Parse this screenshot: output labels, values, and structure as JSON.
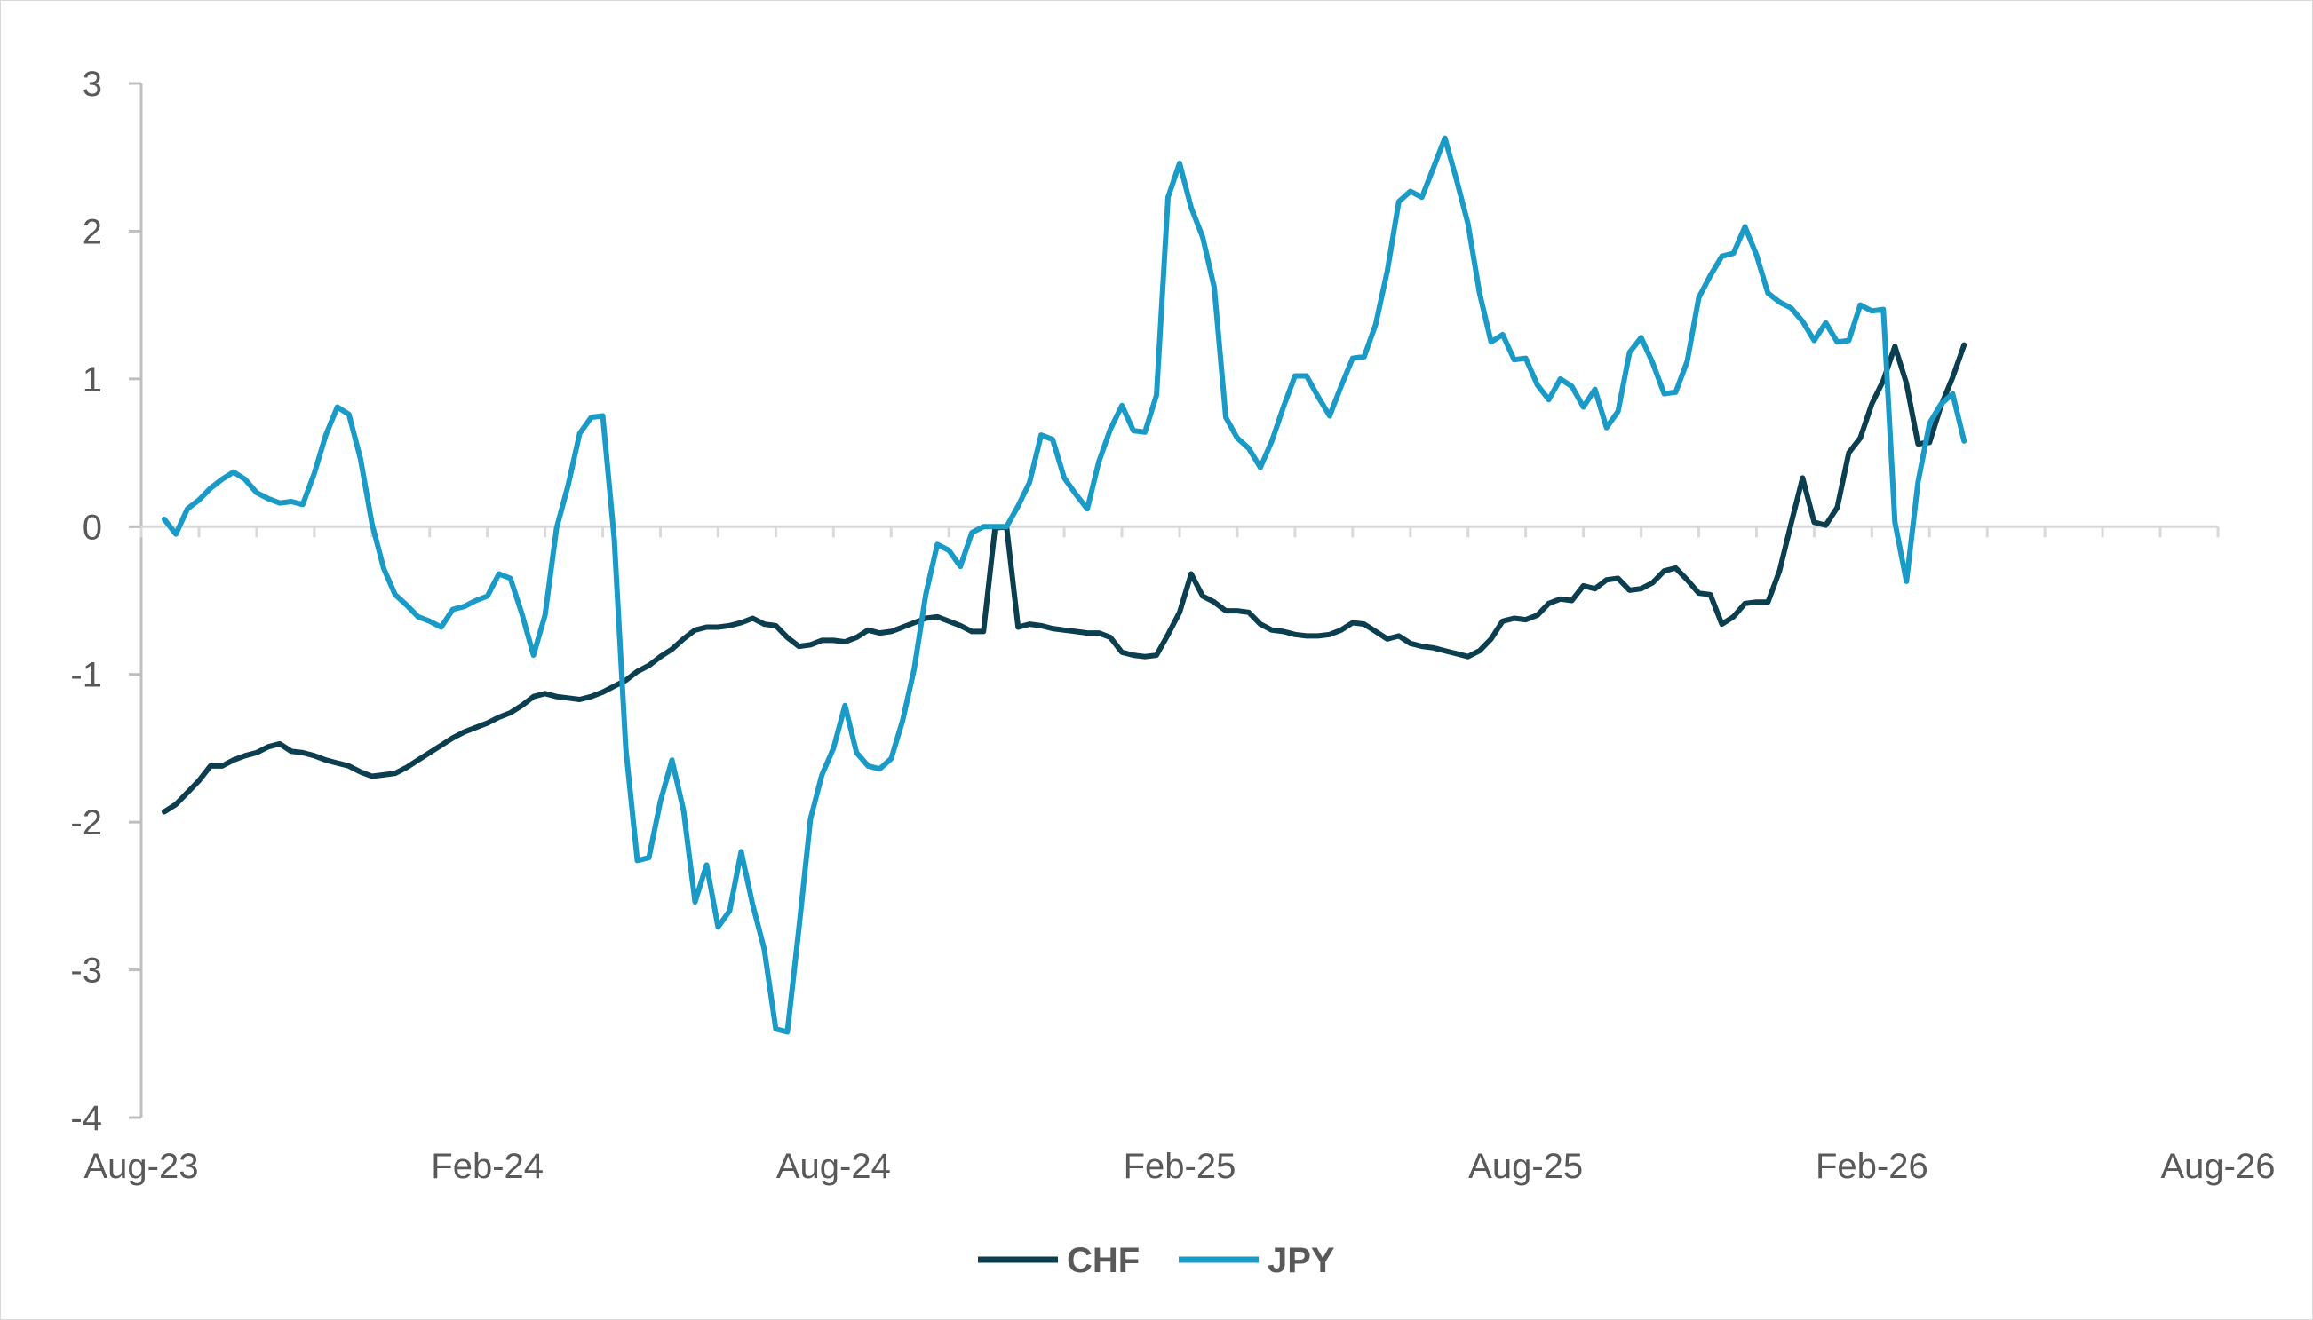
{
  "chart_data": {
    "type": "line",
    "title": "",
    "xlabel": "",
    "ylabel": "",
    "ylim": [
      -4,
      3
    ],
    "yticks": [
      -4,
      -3,
      -2,
      -1,
      0,
      1,
      2,
      3
    ],
    "ytick_labels": [
      "-4",
      "-3",
      "-2",
      "-1",
      "0",
      "1",
      "2",
      "3"
    ],
    "xlim": [
      0,
      36
    ],
    "xticks": [
      0,
      6,
      12,
      18,
      24,
      30,
      36
    ],
    "xtick_labels": [
      "Aug-23",
      "Feb-24",
      "Aug-24",
      "Feb-25",
      "Aug-25",
      "Feb-26",
      "Aug-26"
    ],
    "x_unit": "months since Aug-23",
    "grid": false,
    "legend_position": "bottom-center",
    "series": [
      {
        "name": "CHF",
        "color": "#0b3f50",
        "points": [
          [
            0.4,
            -1.93
          ],
          [
            0.6,
            -1.88
          ],
          [
            0.8,
            -1.8
          ],
          [
            1.0,
            -1.72
          ],
          [
            1.2,
            -1.62
          ],
          [
            1.4,
            -1.62
          ],
          [
            1.6,
            -1.58
          ],
          [
            1.8,
            -1.55
          ],
          [
            2.0,
            -1.53
          ],
          [
            2.2,
            -1.49
          ],
          [
            2.4,
            -1.47
          ],
          [
            2.6,
            -1.52
          ],
          [
            2.8,
            -1.53
          ],
          [
            3.0,
            -1.55
          ],
          [
            3.2,
            -1.58
          ],
          [
            3.4,
            -1.6
          ],
          [
            3.6,
            -1.62
          ],
          [
            3.8,
            -1.66
          ],
          [
            4.0,
            -1.69
          ],
          [
            4.2,
            -1.68
          ],
          [
            4.4,
            -1.67
          ],
          [
            4.6,
            -1.63
          ],
          [
            4.8,
            -1.58
          ],
          [
            5.0,
            -1.53
          ],
          [
            5.2,
            -1.48
          ],
          [
            5.4,
            -1.43
          ],
          [
            5.6,
            -1.39
          ],
          [
            5.8,
            -1.36
          ],
          [
            6.0,
            -1.33
          ],
          [
            6.2,
            -1.29
          ],
          [
            6.4,
            -1.26
          ],
          [
            6.6,
            -1.21
          ],
          [
            6.8,
            -1.15
          ],
          [
            7.0,
            -1.13
          ],
          [
            7.2,
            -1.15
          ],
          [
            7.4,
            -1.16
          ],
          [
            7.6,
            -1.17
          ],
          [
            7.8,
            -1.15
          ],
          [
            8.0,
            -1.12
          ],
          [
            8.2,
            -1.08
          ],
          [
            8.4,
            -1.04
          ],
          [
            8.6,
            -0.98
          ],
          [
            8.8,
            -0.94
          ],
          [
            9.0,
            -0.88
          ],
          [
            9.2,
            -0.83
          ],
          [
            9.4,
            -0.76
          ],
          [
            9.6,
            -0.7
          ],
          [
            9.8,
            -0.68
          ],
          [
            10.0,
            -0.68
          ],
          [
            10.2,
            -0.67
          ],
          [
            10.4,
            -0.65
          ],
          [
            10.6,
            -0.62
          ],
          [
            10.8,
            -0.66
          ],
          [
            11.0,
            -0.67
          ],
          [
            11.2,
            -0.75
          ],
          [
            11.4,
            -0.81
          ],
          [
            11.6,
            -0.8
          ],
          [
            11.8,
            -0.77
          ],
          [
            12.0,
            -0.77
          ],
          [
            12.2,
            -0.78
          ],
          [
            12.4,
            -0.75
          ],
          [
            12.6,
            -0.7
          ],
          [
            12.8,
            -0.72
          ],
          [
            13.0,
            -0.71
          ],
          [
            13.2,
            -0.68
          ],
          [
            13.4,
            -0.65
          ],
          [
            13.6,
            -0.62
          ],
          [
            13.8,
            -0.61
          ],
          [
            14.0,
            -0.64
          ],
          [
            14.2,
            -0.67
          ],
          [
            14.4,
            -0.71
          ],
          [
            14.6,
            -0.71
          ],
          [
            14.8,
            -0.01
          ],
          [
            15.0,
            0.0
          ],
          [
            15.2,
            -0.68
          ],
          [
            15.4,
            -0.66
          ],
          [
            15.6,
            -0.67
          ],
          [
            15.8,
            -0.69
          ],
          [
            16.0,
            -0.7
          ],
          [
            16.2,
            -0.71
          ],
          [
            16.4,
            -0.72
          ],
          [
            16.6,
            -0.72
          ],
          [
            16.8,
            -0.75
          ],
          [
            17.0,
            -0.85
          ],
          [
            17.2,
            -0.87
          ],
          [
            17.4,
            -0.88
          ],
          [
            17.6,
            -0.87
          ],
          [
            17.8,
            -0.73
          ],
          [
            18.0,
            -0.58
          ],
          [
            18.2,
            -0.32
          ],
          [
            18.4,
            -0.47
          ],
          [
            18.6,
            -0.51
          ],
          [
            18.8,
            -0.57
          ],
          [
            19.0,
            -0.57
          ],
          [
            19.2,
            -0.58
          ],
          [
            19.4,
            -0.66
          ],
          [
            19.6,
            -0.7
          ],
          [
            19.8,
            -0.71
          ],
          [
            20.0,
            -0.73
          ],
          [
            20.2,
            -0.74
          ],
          [
            20.4,
            -0.74
          ],
          [
            20.6,
            -0.73
          ],
          [
            20.8,
            -0.7
          ],
          [
            21.0,
            -0.65
          ],
          [
            21.2,
            -0.66
          ],
          [
            21.4,
            -0.71
          ],
          [
            21.6,
            -0.76
          ],
          [
            21.8,
            -0.74
          ],
          [
            22.0,
            -0.79
          ],
          [
            22.2,
            -0.81
          ],
          [
            22.4,
            -0.82
          ],
          [
            22.6,
            -0.84
          ],
          [
            22.8,
            -0.86
          ],
          [
            23.0,
            -0.88
          ],
          [
            23.2,
            -0.84
          ],
          [
            23.4,
            -0.76
          ],
          [
            23.6,
            -0.64
          ],
          [
            23.8,
            -0.62
          ],
          [
            24.0,
            -0.63
          ],
          [
            24.2,
            -0.6
          ],
          [
            24.4,
            -0.52
          ],
          [
            24.6,
            -0.49
          ],
          [
            24.8,
            -0.5
          ],
          [
            25.0,
            -0.4
          ],
          [
            25.2,
            -0.42
          ],
          [
            25.4,
            -0.36
          ],
          [
            25.6,
            -0.35
          ],
          [
            25.8,
            -0.43
          ],
          [
            26.0,
            -0.42
          ],
          [
            26.2,
            -0.38
          ],
          [
            26.4,
            -0.3
          ],
          [
            26.6,
            -0.28
          ],
          [
            26.8,
            -0.36
          ],
          [
            27.0,
            -0.45
          ],
          [
            27.2,
            -0.46
          ],
          [
            27.4,
            -0.66
          ],
          [
            27.6,
            -0.61
          ],
          [
            27.8,
            -0.52
          ],
          [
            28.0,
            -0.51
          ],
          [
            28.2,
            -0.51
          ],
          [
            28.4,
            -0.3
          ],
          [
            28.6,
            0.02
          ],
          [
            28.8,
            0.33
          ],
          [
            29.0,
            0.03
          ],
          [
            29.2,
            0.01
          ],
          [
            29.4,
            0.13
          ],
          [
            29.6,
            0.5
          ],
          [
            29.8,
            0.6
          ],
          [
            30.0,
            0.83
          ],
          [
            30.2,
            0.99
          ],
          [
            30.4,
            1.22
          ],
          [
            30.6,
            0.97
          ],
          [
            30.8,
            0.56
          ],
          [
            31.0,
            0.57
          ],
          [
            31.2,
            0.82
          ],
          [
            31.4,
            1.01
          ],
          [
            31.6,
            1.23
          ]
        ]
      },
      {
        "name": "JPY",
        "color": "#1a9bc7",
        "points": [
          [
            0.4,
            0.05
          ],
          [
            0.6,
            -0.05
          ],
          [
            0.8,
            0.12
          ],
          [
            1.0,
            0.18
          ],
          [
            1.2,
            0.26
          ],
          [
            1.4,
            0.32
          ],
          [
            1.6,
            0.37
          ],
          [
            1.8,
            0.32
          ],
          [
            2.0,
            0.23
          ],
          [
            2.2,
            0.19
          ],
          [
            2.4,
            0.16
          ],
          [
            2.6,
            0.17
          ],
          [
            2.8,
            0.15
          ],
          [
            3.0,
            0.36
          ],
          [
            3.2,
            0.62
          ],
          [
            3.4,
            0.81
          ],
          [
            3.6,
            0.76
          ],
          [
            3.8,
            0.46
          ],
          [
            4.0,
            0.02
          ],
          [
            4.2,
            -0.28
          ],
          [
            4.4,
            -0.46
          ],
          [
            4.6,
            -0.53
          ],
          [
            4.8,
            -0.61
          ],
          [
            5.0,
            -0.64
          ],
          [
            5.2,
            -0.68
          ],
          [
            5.4,
            -0.56
          ],
          [
            5.6,
            -0.54
          ],
          [
            5.8,
            -0.5
          ],
          [
            6.0,
            -0.47
          ],
          [
            6.2,
            -0.32
          ],
          [
            6.4,
            -0.35
          ],
          [
            6.6,
            -0.59
          ],
          [
            6.8,
            -0.87
          ],
          [
            7.0,
            -0.6
          ],
          [
            7.2,
            -0.01
          ],
          [
            7.4,
            0.28
          ],
          [
            7.6,
            0.63
          ],
          [
            7.8,
            0.74
          ],
          [
            8.0,
            0.75
          ],
          [
            8.2,
            -0.08
          ],
          [
            8.4,
            -1.5
          ],
          [
            8.6,
            -2.26
          ],
          [
            8.8,
            -2.24
          ],
          [
            9.0,
            -1.86
          ],
          [
            9.2,
            -1.58
          ],
          [
            9.4,
            -1.92
          ],
          [
            9.6,
            -2.54
          ],
          [
            9.8,
            -2.29
          ],
          [
            10.0,
            -2.71
          ],
          [
            10.2,
            -2.6
          ],
          [
            10.4,
            -2.2
          ],
          [
            10.6,
            -2.56
          ],
          [
            10.8,
            -2.86
          ],
          [
            11.0,
            -3.4
          ],
          [
            11.2,
            -3.42
          ],
          [
            11.4,
            -2.72
          ],
          [
            11.6,
            -1.98
          ],
          [
            11.8,
            -1.68
          ],
          [
            12.0,
            -1.5
          ],
          [
            12.2,
            -1.21
          ],
          [
            12.4,
            -1.53
          ],
          [
            12.6,
            -1.62
          ],
          [
            12.8,
            -1.64
          ],
          [
            13.0,
            -1.57
          ],
          [
            13.2,
            -1.31
          ],
          [
            13.4,
            -0.96
          ],
          [
            13.6,
            -0.46
          ],
          [
            13.8,
            -0.12
          ],
          [
            14.0,
            -0.16
          ],
          [
            14.2,
            -0.27
          ],
          [
            14.4,
            -0.04
          ],
          [
            14.6,
            0.0
          ],
          [
            14.8,
            0.0
          ],
          [
            15.0,
            0.0
          ],
          [
            15.2,
            0.14
          ],
          [
            15.4,
            0.3
          ],
          [
            15.6,
            0.62
          ],
          [
            15.8,
            0.59
          ],
          [
            16.0,
            0.33
          ],
          [
            16.2,
            0.22
          ],
          [
            16.4,
            0.12
          ],
          [
            16.6,
            0.44
          ],
          [
            16.8,
            0.66
          ],
          [
            17.0,
            0.82
          ],
          [
            17.2,
            0.65
          ],
          [
            17.4,
            0.64
          ],
          [
            17.6,
            0.89
          ],
          [
            17.8,
            2.23
          ],
          [
            18.0,
            2.46
          ],
          [
            18.2,
            2.16
          ],
          [
            18.4,
            1.96
          ],
          [
            18.6,
            1.62
          ],
          [
            18.8,
            0.74
          ],
          [
            19.0,
            0.6
          ],
          [
            19.2,
            0.53
          ],
          [
            19.4,
            0.4
          ],
          [
            19.6,
            0.58
          ],
          [
            19.8,
            0.81
          ],
          [
            20.0,
            1.02
          ],
          [
            20.2,
            1.02
          ],
          [
            20.4,
            0.88
          ],
          [
            20.6,
            0.75
          ],
          [
            20.8,
            0.95
          ],
          [
            21.0,
            1.14
          ],
          [
            21.2,
            1.15
          ],
          [
            21.4,
            1.37
          ],
          [
            21.6,
            1.73
          ],
          [
            21.8,
            2.2
          ],
          [
            22.0,
            2.27
          ],
          [
            22.2,
            2.23
          ],
          [
            22.4,
            2.43
          ],
          [
            22.6,
            2.63
          ],
          [
            22.8,
            2.35
          ],
          [
            23.0,
            2.05
          ],
          [
            23.2,
            1.58
          ],
          [
            23.4,
            1.25
          ],
          [
            23.6,
            1.3
          ],
          [
            23.8,
            1.13
          ],
          [
            24.0,
            1.14
          ],
          [
            24.2,
            0.96
          ],
          [
            24.4,
            0.86
          ],
          [
            24.6,
            1.0
          ],
          [
            24.8,
            0.95
          ],
          [
            25.0,
            0.81
          ],
          [
            25.2,
            0.93
          ],
          [
            25.4,
            0.67
          ],
          [
            25.6,
            0.78
          ],
          [
            25.8,
            1.18
          ],
          [
            26.0,
            1.28
          ],
          [
            26.2,
            1.11
          ],
          [
            26.4,
            0.9
          ],
          [
            26.6,
            0.91
          ],
          [
            26.8,
            1.12
          ],
          [
            27.0,
            1.55
          ],
          [
            27.2,
            1.7
          ],
          [
            27.4,
            1.83
          ],
          [
            27.6,
            1.85
          ],
          [
            27.8,
            2.03
          ],
          [
            28.0,
            1.84
          ],
          [
            28.2,
            1.58
          ],
          [
            28.4,
            1.52
          ],
          [
            28.6,
            1.48
          ],
          [
            28.8,
            1.39
          ],
          [
            29.0,
            1.26
          ],
          [
            29.2,
            1.38
          ],
          [
            29.4,
            1.25
          ],
          [
            29.6,
            1.26
          ],
          [
            29.8,
            1.5
          ],
          [
            30.0,
            1.46
          ],
          [
            30.2,
            1.47
          ],
          [
            30.4,
            0.03
          ],
          [
            30.6,
            -0.37
          ],
          [
            30.8,
            0.3
          ],
          [
            31.0,
            0.7
          ],
          [
            31.2,
            0.83
          ],
          [
            31.4,
            0.9
          ],
          [
            31.6,
            0.58
          ]
        ]
      }
    ]
  }
}
